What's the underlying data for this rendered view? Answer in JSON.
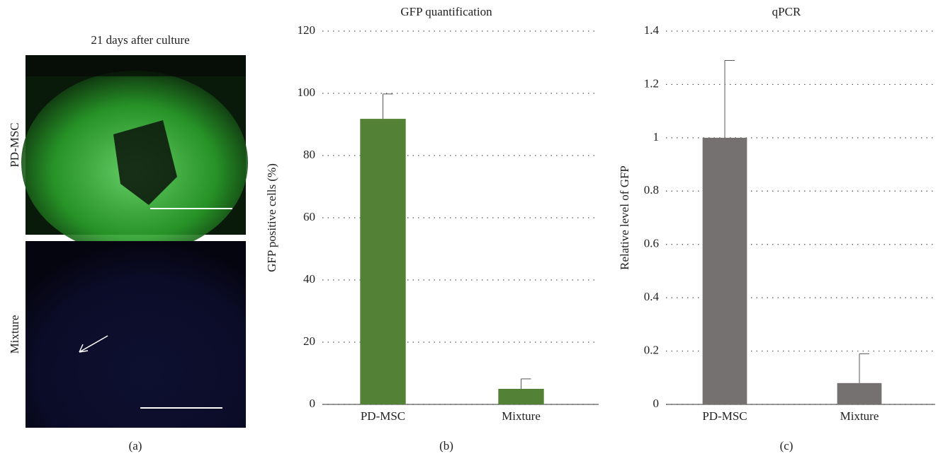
{
  "images": {
    "title": "21 days after culture",
    "rows": [
      "PD-MSC",
      "Mixture"
    ],
    "panel_label": "(a)"
  },
  "chart_data": [
    {
      "type": "bar",
      "title": "GFP quantification",
      "y_label": "GFP positive cells (%)",
      "panel_label": "(b)",
      "categories": [
        "PD-MSC",
        "Mixture"
      ],
      "values": [
        91.8,
        5
      ],
      "errors": [
        8,
        3.2
      ],
      "color": "#538135",
      "ylim": [
        0,
        120
      ],
      "yticks": [
        0,
        20,
        40,
        60,
        80,
        100,
        120
      ],
      "grid": true
    },
    {
      "type": "bar",
      "title": "qPCR",
      "y_label": "Relative level of GFP",
      "panel_label": "(c)",
      "categories": [
        "PD-MSC",
        "Mixture"
      ],
      "values": [
        1,
        0.08
      ],
      "errors": [
        0.29,
        0.11
      ],
      "color": "#767171",
      "ylim": [
        0,
        1.4
      ],
      "yticks": [
        0,
        0.2,
        0.4,
        0.6,
        0.8,
        1,
        1.2,
        1.4
      ],
      "grid": true
    }
  ]
}
